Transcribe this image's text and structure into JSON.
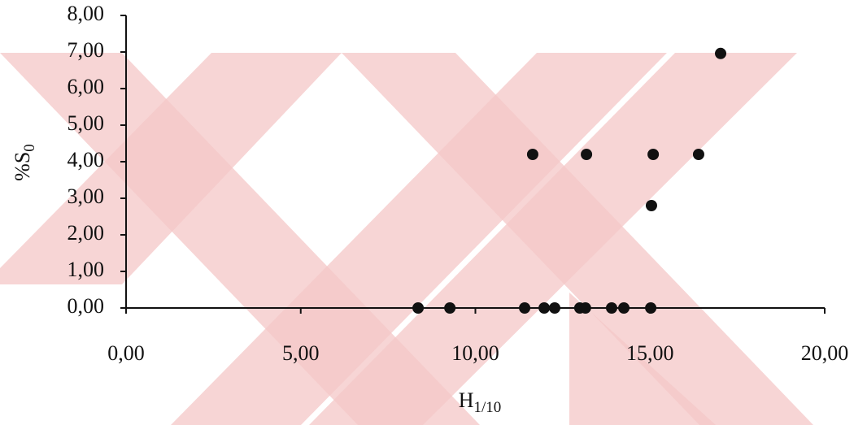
{
  "chart_data": {
    "type": "scatter",
    "xlabel": [
      "H",
      "1/10"
    ],
    "ylabel": [
      "%S",
      "0"
    ],
    "x": [
      8.36,
      9.27,
      11.41,
      11.64,
      11.97,
      12.27,
      12.99,
      13.15,
      13.18,
      13.9,
      14.25,
      15.02,
      15.04,
      15.09,
      16.39,
      17.02
    ],
    "values": [
      0,
      0,
      0,
      4.2,
      0,
      0,
      0,
      0,
      4.2,
      0,
      0,
      0,
      2.8,
      4.2,
      4.2,
      6.96
    ],
    "color": "#111111",
    "xlim": [
      0,
      20
    ],
    "ylim": [
      0,
      8
    ],
    "xticks": [
      {
        "value": 0,
        "label": "0,00"
      },
      {
        "value": 5,
        "label": "5,00"
      },
      {
        "value": 10,
        "label": "10,00"
      },
      {
        "value": 15,
        "label": "15,00"
      },
      {
        "value": 20,
        "label": "20,00"
      }
    ],
    "yticks": [
      {
        "value": 0,
        "label": "0,00"
      },
      {
        "value": 1,
        "label": "1,00"
      },
      {
        "value": 2,
        "label": "2,00"
      },
      {
        "value": 3,
        "label": "3,00"
      },
      {
        "value": 4,
        "label": "4,00"
      },
      {
        "value": 5,
        "label": "5,00"
      },
      {
        "value": 6,
        "label": "6,00"
      },
      {
        "value": 7,
        "label": "7,00"
      },
      {
        "value": 8,
        "label": "8,00"
      }
    ],
    "grid": false
  }
}
